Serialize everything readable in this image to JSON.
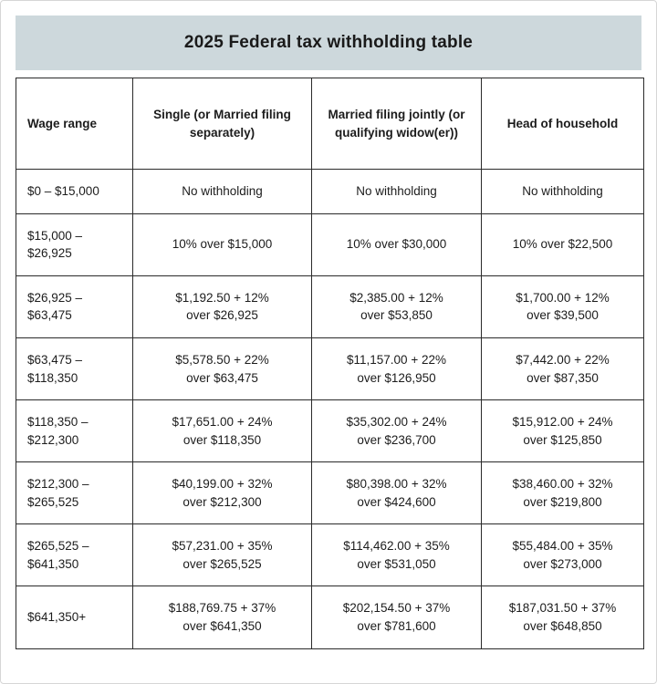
{
  "title": "2025 Federal tax withholding table",
  "colors": {
    "title_bg": "#cdd8dc",
    "border": "#2a2a2a",
    "text": "#1c1c1c",
    "cell_bg": "#ffffff"
  },
  "table": {
    "headers": [
      "Wage range",
      "Single (or Married filing separately)",
      "Married filing jointly (or qualifying widow(er))",
      "Head of household"
    ],
    "rows": [
      [
        "$0 – $15,000",
        "No withholding",
        "No withholding",
        "No withholding"
      ],
      [
        "$15,000 –\n$26,925",
        "10% over $15,000",
        "10% over $30,000",
        "10% over $22,500"
      ],
      [
        "$26,925 –\n$63,475",
        "$1,192.50 + 12%\nover $26,925",
        "$2,385.00 + 12%\nover $53,850",
        "$1,700.00 + 12%\nover $39,500"
      ],
      [
        "$63,475 –\n$118,350",
        "$5,578.50 + 22%\nover $63,475",
        "$11,157.00 + 22%\nover $126,950",
        "$7,442.00 + 22%\nover $87,350"
      ],
      [
        "$118,350 –\n$212,300",
        "$17,651.00 + 24%\nover $118,350",
        "$35,302.00 + 24%\nover $236,700",
        "$15,912.00 + 24%\nover $125,850"
      ],
      [
        "$212,300 –\n$265,525",
        "$40,199.00 + 32%\nover $212,300",
        "$80,398.00 + 32%\nover $424,600",
        "$38,460.00 + 32%\nover $219,800"
      ],
      [
        "$265,525 –\n$641,350",
        "$57,231.00 + 35%\nover $265,525",
        "$114,462.00 + 35%\nover $531,050",
        "$55,484.00 + 35%\nover $273,000"
      ],
      [
        "$641,350+",
        "$188,769.75 + 37%\nover $641,350",
        "$202,154.50 + 37%\nover $781,600",
        "$187,031.50 + 37%\nover $648,850"
      ]
    ]
  }
}
